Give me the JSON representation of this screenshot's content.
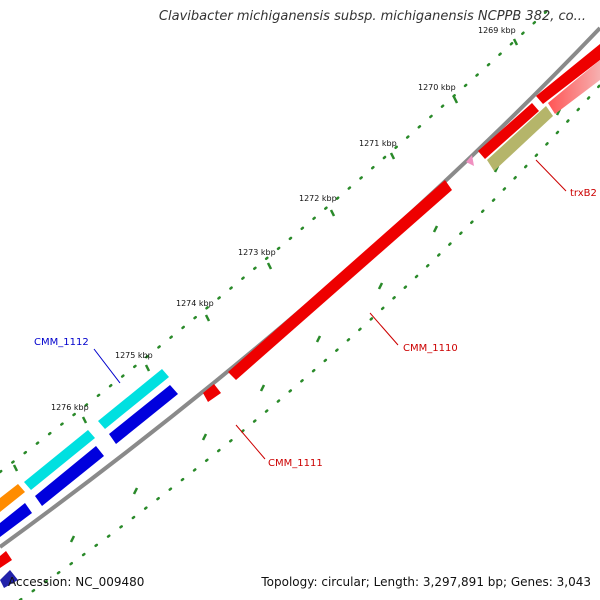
{
  "title": "Clavibacter michiganensis subsp. michiganensis NCPPB 382, co...",
  "footer": {
    "accession": "Accession: NC_009480",
    "summary": "Topology: circular; Length: 3,297,891 bp; Genes: 3,043"
  },
  "ticks": [
    "1269 kbp",
    "1270 kbp",
    "1271 kbp",
    "1272 kbp",
    "1273 kbp",
    "1274 kbp",
    "1275 kbp",
    "1276 kbp"
  ],
  "genes": [
    {
      "label": "CMM_1112",
      "color": "#0000cc"
    },
    {
      "label": "CMM_1110",
      "color": "#cc0000"
    },
    {
      "label": "CMM_1111",
      "color": "#cc0000"
    },
    {
      "label": "trxB2",
      "color": "#cc0000"
    }
  ],
  "colors": {
    "backbone": "#888888",
    "tick_marks": "#2a8a2a",
    "cds_red": "#ee0000",
    "cds_cyan": "#00e0e0",
    "cds_blue": "#0000dd",
    "cds_orange": "#ff8c00",
    "cds_olive": "#b5b56a",
    "cds_pink": "#f08080"
  }
}
